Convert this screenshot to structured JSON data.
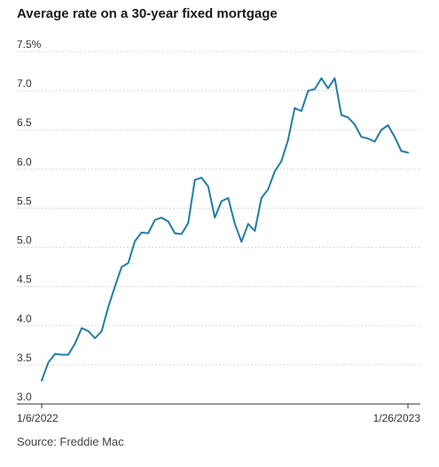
{
  "title": "Average rate on a 30-year fixed mortgage",
  "source": "Source: Freddie Mac",
  "colors": {
    "line": "#1f7ea6",
    "grid": "#d9d9d9",
    "text": "#333333"
  },
  "chart_data": {
    "type": "line",
    "title": "Average rate on a 30-year fixed mortgage",
    "xlabel": "",
    "ylabel": "",
    "ylim": [
      3.0,
      7.5
    ],
    "y_ticks": [
      3.0,
      3.5,
      4.0,
      4.5,
      5.0,
      5.5,
      6.0,
      6.5,
      7.0,
      7.5
    ],
    "y_tick_labels": [
      "3.0",
      "3.5",
      "4.0",
      "4.5",
      "5.0",
      "5.5",
      "6.0",
      "6.5",
      "7.0",
      "7.5%"
    ],
    "x_tick_labels": [
      "1/6/2022",
      "1/26/2023"
    ],
    "x_range": [
      "1/6/2022",
      "1/26/2023"
    ],
    "grid": true,
    "series": [
      {
        "values": [
          3.22,
          3.45,
          3.56,
          3.55,
          3.55,
          3.69,
          3.89,
          3.85,
          3.76,
          3.85,
          4.16,
          4.42,
          4.67,
          4.72,
          5.0,
          5.11,
          5.1,
          5.27,
          5.3,
          5.25,
          5.1,
          5.09,
          5.23,
          5.78,
          5.81,
          5.7,
          5.3,
          5.51,
          5.55,
          5.22,
          4.99,
          5.22,
          5.13,
          5.55,
          5.66,
          5.89,
          6.02,
          6.29,
          6.7,
          6.66,
          6.92,
          6.94,
          7.08,
          6.95,
          7.08,
          6.61,
          6.58,
          6.49,
          6.33,
          6.31,
          6.27,
          6.42,
          6.48,
          6.33,
          6.15,
          6.13
        ]
      }
    ]
  }
}
